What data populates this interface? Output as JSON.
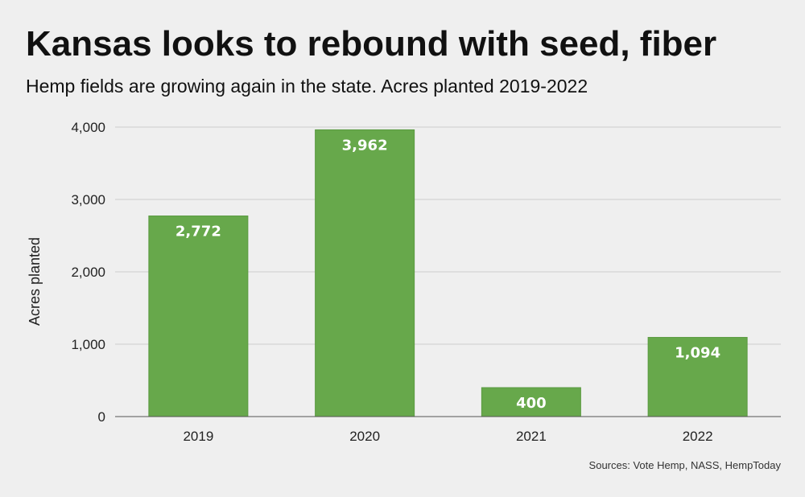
{
  "header": {
    "title": "Kansas looks to rebound with seed, fiber",
    "subtitle": "Hemp fields are growing again in the state. Acres planted 2019-2022"
  },
  "footer": {
    "source": "Sources: Vote Hemp, NASS, HempToday"
  },
  "colors": {
    "background": "#efefef",
    "bar": "#67a84b",
    "bar_edge": "#5a9a40",
    "gridline": "#cccccc",
    "axis": "#555555",
    "text": "#111111"
  },
  "chart_data": {
    "type": "bar",
    "title": "Kansas looks to rebound with seed, fiber",
    "subtitle": "Hemp fields are growing again in the state. Acres planted 2019-2022",
    "categories": [
      "2019",
      "2020",
      "2021",
      "2022"
    ],
    "values": [
      2772,
      3962,
      400,
      1094
    ],
    "data_labels": [
      "2,772",
      "3,962",
      "400",
      "1,094"
    ],
    "xlabel": "",
    "ylabel": "Acres planted",
    "ylim": [
      0,
      4000
    ],
    "yticks": [
      0,
      1000,
      2000,
      3000,
      4000
    ],
    "ytick_labels": [
      "0",
      "1,000",
      "2,000",
      "3,000",
      "4,000"
    ],
    "grid": true,
    "legend": "none"
  }
}
